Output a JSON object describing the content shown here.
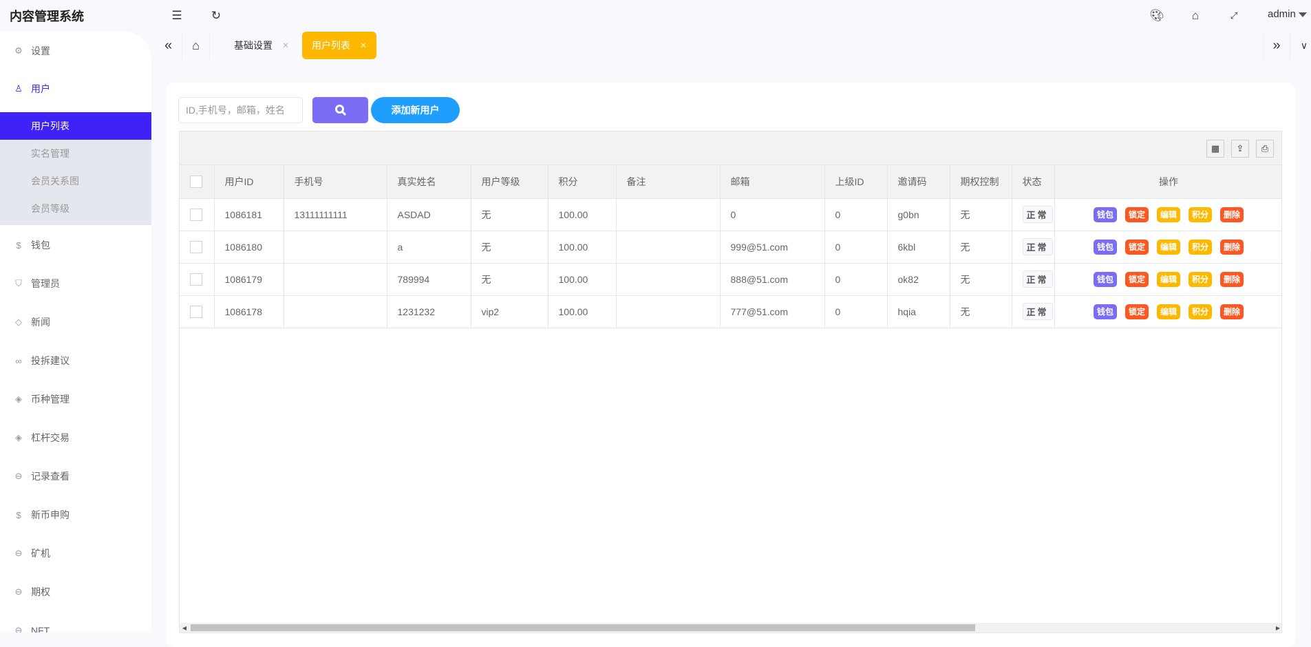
{
  "app": {
    "title": "内容管理系统",
    "user": "admin"
  },
  "topbar_icons": [
    "menu-fold-icon",
    "refresh-icon",
    "palette-icon",
    "tag-icon",
    "fullscreen-icon"
  ],
  "sidebar": {
    "items": [
      {
        "label": "设置",
        "icon": "gear-icon"
      },
      {
        "label": "用户",
        "icon": "user-icon",
        "open": true,
        "children": [
          {
            "label": "用户列表",
            "active": true
          },
          {
            "label": "实名管理"
          },
          {
            "label": "会员关系图"
          },
          {
            "label": "会员等级"
          }
        ]
      },
      {
        "label": "钱包",
        "icon": "dollar-icon"
      },
      {
        "label": "管理员",
        "icon": "shield-icon"
      },
      {
        "label": "新闻",
        "icon": "tag-icon"
      },
      {
        "label": "投拆建议",
        "icon": "link-icon"
      },
      {
        "label": "币种管理",
        "icon": "diamond-icon"
      },
      {
        "label": "杠杆交易",
        "icon": "diamond-icon"
      },
      {
        "label": "记录查看",
        "icon": "circle-arrow-icon"
      },
      {
        "label": "新币申购",
        "icon": "dollar-icon"
      },
      {
        "label": "矿机",
        "icon": "circle-arrow-icon"
      },
      {
        "label": "期权",
        "icon": "circle-arrow-icon"
      },
      {
        "label": "NFT",
        "icon": "circle-arrow-icon"
      }
    ]
  },
  "tabs": [
    {
      "label": "基础设置",
      "active": false
    },
    {
      "label": "用户列表",
      "active": true
    }
  ],
  "toolbar": {
    "search_placeholder": "ID,手机号，邮箱，姓名",
    "search_value": "",
    "add_label": "添加新用户"
  },
  "table": {
    "columns": [
      "用户ID",
      "手机号",
      "真实姓名",
      "用户等级",
      "积分",
      "备注",
      "邮箱",
      "上级ID",
      "邀请码",
      "期权控制",
      "状态",
      "操作"
    ],
    "rows": [
      {
        "id": "1086181",
        "phone": "13111111111",
        "name": "ASDAD",
        "level": "无",
        "points": "100.00",
        "note": "",
        "email": "0",
        "parent": "0",
        "invite": "g0bn",
        "option": "无",
        "status": "正常"
      },
      {
        "id": "1086180",
        "phone": "",
        "name": "a",
        "level": "无",
        "points": "100.00",
        "note": "",
        "email": "999@51.com",
        "parent": "0",
        "invite": "6kbl",
        "option": "无",
        "status": "正常"
      },
      {
        "id": "1086179",
        "phone": "",
        "name": "789994",
        "level": "无",
        "points": "100.00",
        "note": "",
        "email": "888@51.com",
        "parent": "0",
        "invite": "ok82",
        "option": "无",
        "status": "正常"
      },
      {
        "id": "1086178",
        "phone": "",
        "name": "1231232",
        "level": "vip2",
        "points": "100.00",
        "note": "",
        "email": "777@51.com",
        "parent": "0",
        "invite": "hqia",
        "option": "无",
        "status": "正常"
      }
    ],
    "actions": [
      {
        "label": "钱包",
        "color": "#7b6cf6"
      },
      {
        "label": "锁定",
        "color": "#ff5722"
      },
      {
        "label": "编辑",
        "color": "#ffb800"
      },
      {
        "label": "积分",
        "color": "#ffb800"
      },
      {
        "label": "删除",
        "color": "#ff5722"
      }
    ]
  },
  "colors": {
    "accent": "#3f22f7",
    "tab_active": "#ffb800",
    "add_button": "#1e9fff",
    "search_button": "#7b6cf6"
  }
}
